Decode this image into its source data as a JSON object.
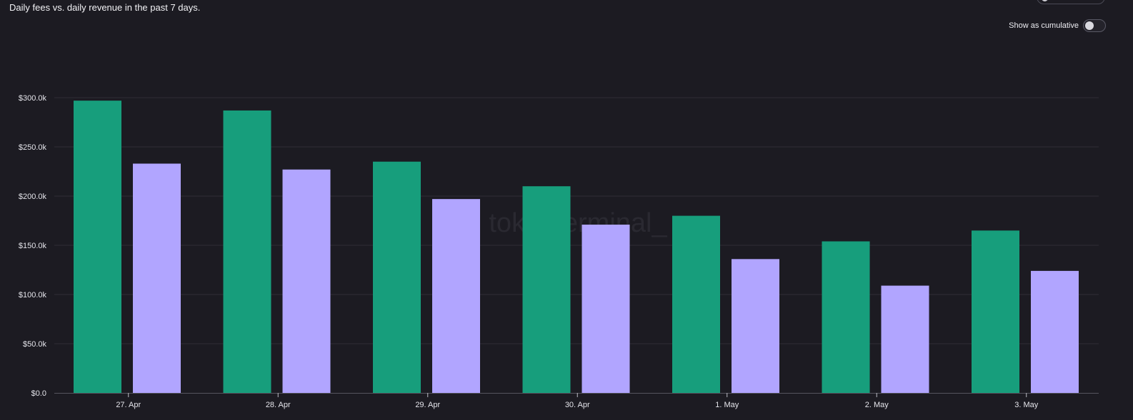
{
  "subtitle": "Daily fees vs. daily revenue in the past 7 days.",
  "controls": {
    "cumulative_label": "Show as cumulative",
    "cumulative_on": false
  },
  "watermark": "tokenterminal_",
  "colors": {
    "background": "#1c1b22",
    "gridline": "#2f2e36",
    "axis_text": "#e4e4ea",
    "fees": "#179e7c",
    "revenue": "#b1a5ff",
    "watermark": "#2a2931"
  },
  "chart_data": {
    "type": "bar",
    "title": "Daily fees vs. daily revenue in the past 7 days.",
    "categories": [
      "27. Apr",
      "28. Apr",
      "29. Apr",
      "30. Apr",
      "1. May",
      "2. May",
      "3. May"
    ],
    "series": [
      {
        "name": "Fees",
        "color": "#179e7c",
        "values": [
          297000,
          287000,
          235000,
          210000,
          180000,
          154000,
          165000
        ]
      },
      {
        "name": "Revenue",
        "color": "#b1a5ff",
        "values": [
          233000,
          227000,
          197000,
          171000,
          136000,
          109000,
          124000
        ]
      }
    ],
    "y_ticks": [
      0,
      50000,
      100000,
      150000,
      200000,
      250000,
      300000
    ],
    "y_tick_labels": [
      "$0.0",
      "$50.0k",
      "$100.0k",
      "$150.0k",
      "$200.0k",
      "$250.0k",
      "$300.0k"
    ],
    "ylim": [
      0,
      300000
    ],
    "xlabel": "",
    "ylabel": "",
    "grid": true,
    "legend": "none"
  }
}
